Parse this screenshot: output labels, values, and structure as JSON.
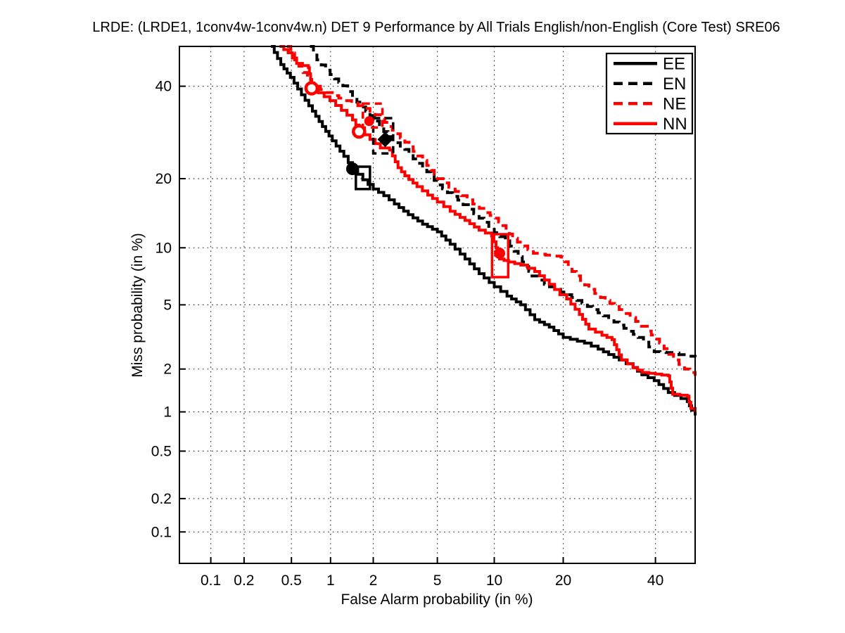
{
  "chart_data": {
    "type": "line",
    "variant": "DET curve (normal deviate / probit scale on both axes)",
    "title": "LRDE: (LRDE1, 1conv4w-1conv4w.n) DET 9 Performance by All Trials English/non-English (Core Test) SRE06",
    "xlabel": "False Alarm probability (in %)",
    "ylabel": "Miss probability (in %)",
    "x_ticks": [
      0.1,
      0.2,
      0.5,
      1,
      2,
      5,
      10,
      20,
      40
    ],
    "y_ticks": [
      0.1,
      0.2,
      0.5,
      1,
      2,
      5,
      10,
      20,
      40
    ],
    "x_range_pct": [
      0.05,
      50
    ],
    "y_range_pct": [
      0.05,
      50
    ],
    "grid": "dotted",
    "legend_position": "top-right",
    "colors": {
      "black": "#000000",
      "red": "#ff0000",
      "background": "#ffffff"
    },
    "legend": [
      {
        "label": "EE",
        "color": "#000000",
        "line": "solid"
      },
      {
        "label": "EN",
        "color": "#000000",
        "line": "dashed"
      },
      {
        "label": "NE",
        "color": "#ff0000",
        "line": "dashed"
      },
      {
        "label": "NN",
        "color": "#ff0000",
        "line": "solid"
      }
    ],
    "series": [
      {
        "name": "EE",
        "color": "#000000",
        "line": "solid",
        "points": [
          [
            0.34,
            50
          ],
          [
            0.41,
            45.4
          ],
          [
            0.49,
            42.2
          ],
          [
            0.6,
            37.9
          ],
          [
            0.73,
            34
          ],
          [
            0.87,
            30.5
          ],
          [
            1.03,
            27.4
          ],
          [
            1.25,
            24.2
          ],
          [
            1.44,
            21.8
          ],
          [
            1.7,
            19.8
          ],
          [
            2.0,
            18.2
          ],
          [
            2.35,
            17.1
          ],
          [
            2.75,
            15.8
          ],
          [
            3.36,
            14.2
          ],
          [
            4.1,
            12.9
          ],
          [
            5.0,
            11.9
          ],
          [
            5.9,
            10.4
          ],
          [
            7.1,
            8.8
          ],
          [
            8.4,
            7.4
          ],
          [
            10,
            6.3
          ],
          [
            11.5,
            5.6
          ],
          [
            13.3,
            5.0
          ],
          [
            15.3,
            4.1
          ],
          [
            17.6,
            3.7
          ],
          [
            20,
            3.2
          ],
          [
            24,
            2.95
          ],
          [
            26.8,
            2.7
          ],
          [
            31.4,
            2.3
          ],
          [
            34.6,
            2.05
          ],
          [
            36.7,
            1.83
          ],
          [
            39.7,
            1.67
          ],
          [
            43.2,
            1.38
          ],
          [
            48,
            1.19
          ],
          [
            49.1,
            1.03
          ],
          [
            50,
            0.94
          ]
        ]
      },
      {
        "name": "EN",
        "color": "#000000",
        "line": "dashed",
        "points": [
          [
            0.7,
            50
          ],
          [
            0.79,
            46.6
          ],
          [
            0.92,
            44
          ],
          [
            1.07,
            41.8
          ],
          [
            1.23,
            40.1
          ],
          [
            1.44,
            37.3
          ],
          [
            1.66,
            35
          ],
          [
            1.9,
            33
          ],
          [
            2.2,
            30.5
          ],
          [
            2.5,
            28.3
          ],
          [
            2.8,
            27
          ],
          [
            3.2,
            25.6
          ],
          [
            3.6,
            23.7
          ],
          [
            4.1,
            22
          ],
          [
            4.6,
            20.5
          ],
          [
            5.0,
            18.9
          ],
          [
            5.7,
            17.6
          ],
          [
            6.5,
            16.4
          ],
          [
            7.4,
            15
          ],
          [
            8.4,
            13.7
          ],
          [
            9.4,
            12.6
          ],
          [
            10,
            11.8
          ],
          [
            11.3,
            10.8
          ],
          [
            12.4,
            9.6
          ],
          [
            13.5,
            8.5
          ],
          [
            14.9,
            7.2
          ],
          [
            16.8,
            6.5
          ],
          [
            18.5,
            6.1
          ],
          [
            20.6,
            5.7
          ],
          [
            23.5,
            5.1
          ],
          [
            26.8,
            4.5
          ],
          [
            31.4,
            3.8
          ],
          [
            35.8,
            3.2
          ],
          [
            39.7,
            2.6
          ],
          [
            44.1,
            2.55
          ],
          [
            47.7,
            2.43
          ],
          [
            50,
            2.4
          ]
        ]
      },
      {
        "name": "NE",
        "color": "#ff0000",
        "line": "dashed",
        "points": [
          [
            0.46,
            50
          ],
          [
            0.53,
            46.6
          ],
          [
            0.62,
            43.4
          ],
          [
            0.72,
            40.8
          ],
          [
            0.84,
            39.2
          ],
          [
            1.03,
            37.7
          ],
          [
            1.28,
            36.5
          ],
          [
            1.57,
            35.3
          ],
          [
            1.9,
            34
          ],
          [
            2.23,
            32.4
          ],
          [
            2.54,
            30.5
          ],
          [
            2.8,
            28.9
          ],
          [
            3.2,
            27.1
          ],
          [
            3.6,
            25.2
          ],
          [
            4.1,
            23.4
          ],
          [
            4.6,
            21.5
          ],
          [
            5.0,
            20
          ],
          [
            5.8,
            18.5
          ],
          [
            6.8,
            17.1
          ],
          [
            7.8,
            15.8
          ],
          [
            9.1,
            14.5
          ],
          [
            10,
            13.7
          ],
          [
            11,
            12.7
          ],
          [
            12.2,
            11.1
          ],
          [
            13.5,
            10.2
          ],
          [
            15.1,
            9.4
          ],
          [
            17,
            9.2
          ],
          [
            19.6,
            9.0
          ],
          [
            21.6,
            7.6
          ],
          [
            24.9,
            6.1
          ],
          [
            27.3,
            5.5
          ],
          [
            31.4,
            4.7
          ],
          [
            35.2,
            4.0
          ],
          [
            38,
            3.5
          ],
          [
            41,
            2.95
          ],
          [
            44.5,
            2.3
          ],
          [
            47.3,
            2.0
          ],
          [
            50,
            1.8
          ]
        ]
      },
      {
        "name": "NN",
        "color": "#ff0000",
        "line": "solid",
        "points": [
          [
            0.4,
            50
          ],
          [
            0.47,
            48.4
          ],
          [
            0.55,
            45.7
          ],
          [
            0.68,
            44.6
          ],
          [
            0.72,
            40.1
          ],
          [
            0.81,
            38.4
          ],
          [
            0.99,
            36.5
          ],
          [
            1.2,
            34.2
          ],
          [
            1.44,
            32
          ],
          [
            1.6,
            29.7
          ],
          [
            1.9,
            27.7
          ],
          [
            2.23,
            25.9
          ],
          [
            2.56,
            25.5
          ],
          [
            2.9,
            22
          ],
          [
            3.2,
            20.5
          ],
          [
            3.8,
            18.6
          ],
          [
            4.4,
            17.2
          ],
          [
            5.0,
            16.1
          ],
          [
            5.9,
            14.7
          ],
          [
            7.1,
            13.4
          ],
          [
            8.4,
            12.1
          ],
          [
            9.7,
            11.4
          ],
          [
            10.2,
            10
          ],
          [
            10.6,
            8.8
          ],
          [
            11.7,
            8.5
          ],
          [
            13.3,
            8.2
          ],
          [
            15.3,
            7.6
          ],
          [
            17.6,
            6.5
          ],
          [
            19.4,
            5.7
          ],
          [
            20.6,
            5.4
          ],
          [
            23,
            4.4
          ],
          [
            24.9,
            3.6
          ],
          [
            27.6,
            3.3
          ],
          [
            29.8,
            3.1
          ],
          [
            31.9,
            2.3
          ],
          [
            34.6,
            2.04
          ],
          [
            36.8,
            1.9
          ],
          [
            43.2,
            1.8
          ],
          [
            44.3,
            1.34
          ],
          [
            48,
            1.3
          ],
          [
            48.9,
            1.06
          ],
          [
            50,
            1.0
          ]
        ]
      }
    ],
    "markers": [
      {
        "series": "EE",
        "shape": "circle-filled",
        "color": "#000000",
        "x": 1.44,
        "y": 21.8,
        "size": 9
      },
      {
        "series": "EN",
        "shape": "diamond-filled",
        "color": "#000000",
        "x": 2.4,
        "y": 27.7,
        "size": 11
      },
      {
        "series": "NE",
        "shape": "circle-open",
        "color": "#ff0000",
        "x": 0.72,
        "y": 39.5,
        "size": 8
      },
      {
        "series": "NN",
        "shape": "circle-open",
        "color": "#ff0000",
        "x": 1.6,
        "y": 29.4,
        "size": 8
      },
      {
        "series": "NE",
        "shape": "circle-filled",
        "color": "#ff0000",
        "x": 1.88,
        "y": 31.7,
        "size": 7
      },
      {
        "series": "NN",
        "shape": "circle-filled",
        "color": "#ff0000",
        "x": 10.6,
        "y": 9.4,
        "size": 8
      }
    ],
    "boxes": [
      {
        "series": "EE",
        "color": "#000000",
        "line": "solid",
        "x": [
          1.52,
          1.9
        ],
        "y": [
          18.2,
          22.2
        ]
      },
      {
        "series": "EN",
        "color": "#000000",
        "line": "dashed",
        "x": [
          2.0,
          2.7
        ],
        "y": [
          24.8,
          32.4
        ]
      },
      {
        "series": "NE",
        "color": "#ff0000",
        "line": "dashed",
        "x": [
          1.7,
          2.3
        ],
        "y": [
          30.3,
          35.8
        ]
      },
      {
        "series": "NN",
        "color": "#ff0000",
        "line": "solid",
        "x": [
          9.75,
          11.65
        ],
        "y": [
          7.1,
          11.6
        ]
      }
    ]
  }
}
